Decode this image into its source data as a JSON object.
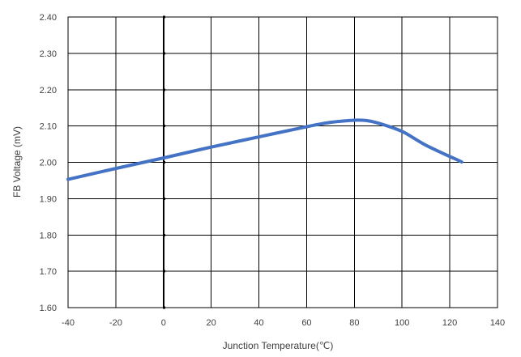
{
  "chart_data": {
    "type": "line",
    "title": "",
    "xlabel": "Junction Temperature(℃)",
    "ylabel": "FB Voltage (mV)",
    "xlim": [
      -40,
      140
    ],
    "ylim": [
      1.6,
      2.4
    ],
    "xticks": [
      -40,
      -20,
      0,
      20,
      40,
      60,
      80,
      100,
      120,
      140
    ],
    "xtick_labels": [
      "-40",
      "-20",
      "0",
      "20",
      "40",
      "60",
      "80",
      "100",
      "120",
      "140"
    ],
    "yticks": [
      1.6,
      1.7,
      1.8,
      1.9,
      2.0,
      2.1,
      2.2,
      2.3,
      2.4
    ],
    "ytick_labels": [
      "1.60",
      "1.70",
      "1.80",
      "1.90",
      "2.00",
      "2.10",
      "2.20",
      "2.30",
      "2.40"
    ],
    "grid": true,
    "legend": "none",
    "series": [
      {
        "color": "#4472C4",
        "x": [
          -40,
          -20,
          0,
          20,
          40,
          60,
          70,
          80,
          85,
          90,
          100,
          110,
          125
        ],
        "y": [
          1.953,
          1.983,
          2.012,
          2.042,
          2.07,
          2.098,
          2.11,
          2.116,
          2.115,
          2.108,
          2.085,
          2.047,
          2.001
        ]
      }
    ]
  }
}
